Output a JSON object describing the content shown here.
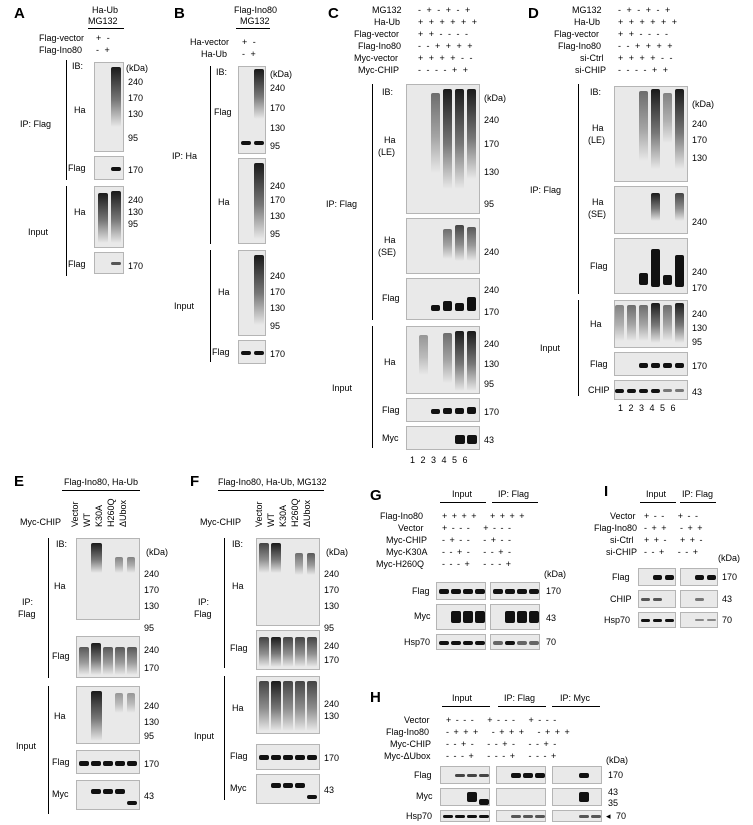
{
  "panels": {
    "A": {
      "letter": "A",
      "header": [
        "Ha-Ub",
        "MG132"
      ],
      "rows": [
        {
          "label": "Flag-vector",
          "signs": "+ -"
        },
        {
          "label": "Flag-Ino80",
          "signs": "- +"
        }
      ],
      "ib": "IB:",
      "kda": "(kDa)",
      "ip": "IP: Flag",
      "input": "Input",
      "blots": [
        {
          "label": "Ha",
          "markers": [
            "240",
            "170",
            "130",
            "95"
          ]
        },
        {
          "label": "Flag",
          "markers": [
            "170"
          ]
        },
        {
          "label": "Ha",
          "markers": [
            "240",
            "130",
            "95"
          ]
        },
        {
          "label": "Flag",
          "markers": [
            "170"
          ]
        }
      ]
    },
    "B": {
      "letter": "B",
      "header": [
        "Flag-Ino80",
        "MG132"
      ],
      "rows": [
        {
          "label": "Ha-vector",
          "signs": "+ -"
        },
        {
          "label": "Ha-Ub",
          "signs": "- +"
        }
      ],
      "ib": "IB:",
      "kda": "(kDa)",
      "ip": "IP: Ha",
      "input": "Input",
      "blots": [
        {
          "label": "Flag",
          "markers": [
            "240",
            "170",
            "130",
            "95"
          ]
        },
        {
          "label": "Ha",
          "markers": [
            "240",
            "170",
            "130",
            "95"
          ]
        },
        {
          "label": "Ha",
          "markers": [
            "240",
            "170",
            "130",
            "95"
          ]
        },
        {
          "label": "Flag",
          "markers": [
            "170"
          ]
        }
      ]
    },
    "C": {
      "letter": "C",
      "rows": [
        {
          "label": "MG132",
          "signs": "- + - + - +"
        },
        {
          "label": "Ha-Ub",
          "signs": "+ + + + + +"
        },
        {
          "label": "Flag-vector",
          "signs": "+ + - - - -"
        },
        {
          "label": "Flag-Ino80",
          "signs": "- - + + + +"
        },
        {
          "label": "Myc-vector",
          "signs": "+ + + + - -"
        },
        {
          "label": "Myc-CHIP",
          "signs": "- - - - + +"
        }
      ],
      "ib": "IB:",
      "kda": "(kDa)",
      "ip": "IP: Flag",
      "input": "Input",
      "blots": [
        {
          "label": "Ha",
          "sub": "(LE)",
          "markers": [
            "240",
            "170",
            "130",
            "95"
          ]
        },
        {
          "label": "Ha",
          "sub": "(SE)",
          "markers": [
            "240"
          ]
        },
        {
          "label": "Flag",
          "markers": [
            "240",
            "170"
          ]
        },
        {
          "label": "Ha",
          "markers": [
            "240",
            "130",
            "95"
          ]
        },
        {
          "label": "Flag",
          "markers": [
            "170"
          ]
        },
        {
          "label": "Myc",
          "markers": [
            "43"
          ]
        }
      ],
      "lanes": "1 2 3 4 5 6"
    },
    "D": {
      "letter": "D",
      "rows": [
        {
          "label": "MG132",
          "signs": "- + - + - +"
        },
        {
          "label": "Ha-Ub",
          "signs": "+ + + + + +"
        },
        {
          "label": "Flag-vector",
          "signs": "+ + - - - -"
        },
        {
          "label": "Flag-Ino80",
          "signs": "- - + + + +"
        },
        {
          "label": "si-Ctrl",
          "signs": "+ + + + - -"
        },
        {
          "label": "si-CHIP",
          "signs": "- - - - + +"
        }
      ],
      "ib": "IB:",
      "kda": "(kDa)",
      "ip": "IP: Flag",
      "input": "Input",
      "blots": [
        {
          "label": "Ha",
          "sub": "(LE)",
          "markers": [
            "240",
            "170",
            "130"
          ]
        },
        {
          "label": "Ha",
          "sub": "(SE)",
          "markers": [
            "240"
          ]
        },
        {
          "label": "Flag",
          "markers": [
            "240",
            "170"
          ]
        },
        {
          "label": "Ha",
          "markers": [
            "240",
            "130",
            "95"
          ]
        },
        {
          "label": "Flag",
          "markers": [
            "170"
          ]
        },
        {
          "label": "CHIP",
          "markers": [
            "43"
          ]
        }
      ],
      "lanes": "1 2 3 4 5 6"
    },
    "E": {
      "letter": "E",
      "header": "Flag-Ino80, Ha-Ub",
      "row_label": "Myc-CHIP",
      "columns": [
        "Vector",
        "WT",
        "K30A",
        "H260Q",
        "ΔUbox"
      ],
      "ib": "IB:",
      "kda": "(kDa)",
      "ip": [
        "IP:",
        "Flag"
      ],
      "input": "Input",
      "blots": [
        {
          "label": "Ha",
          "markers": [
            "240",
            "170",
            "130",
            "95"
          ]
        },
        {
          "label": "Flag",
          "markers": [
            "240",
            "170"
          ]
        },
        {
          "label": "Ha",
          "markers": [
            "240",
            "130",
            "95"
          ]
        },
        {
          "label": "Flag",
          "markers": [
            "170"
          ]
        },
        {
          "label": "Myc",
          "markers": [
            "43"
          ]
        }
      ]
    },
    "F": {
      "letter": "F",
      "header": "Flag-Ino80, Ha-Ub, MG132",
      "row_label": "Myc-CHIP",
      "columns": [
        "Vector",
        "WT",
        "K30A",
        "H260Q",
        "ΔUbox"
      ],
      "ib": "IB:",
      "kda": "(kDa)",
      "ip": [
        "IP:",
        "Flag"
      ],
      "input": "Input",
      "blots": [
        {
          "label": "Ha",
          "markers": [
            "240",
            "170",
            "130",
            "95"
          ]
        },
        {
          "label": "Flag",
          "markers": [
            "240",
            "170"
          ]
        },
        {
          "label": "Ha",
          "markers": [
            "240",
            "130"
          ]
        },
        {
          "label": "Flag",
          "markers": [
            "170"
          ]
        },
        {
          "label": "Myc",
          "markers": [
            "43"
          ]
        }
      ]
    },
    "G": {
      "letter": "G",
      "groups": [
        "Input",
        "IP: Flag"
      ],
      "rows": [
        {
          "label": "Flag-Ino80",
          "signs": "+ + + +   + + + +"
        },
        {
          "label": "Vector",
          "signs": "+ - - -   + - - -"
        },
        {
          "label": "Myc-CHIP",
          "signs": "- + - -   - + - -"
        },
        {
          "label": "Myc-K30A",
          "signs": "- - + -   - - + -"
        },
        {
          "label": "Myc-H260Q",
          "signs": "- - - +   - - - +"
        }
      ],
      "kda": "(kDa)",
      "blots": [
        {
          "label": "Flag",
          "marker": "170"
        },
        {
          "label": "Myc",
          "marker": "43"
        },
        {
          "label": "Hsp70",
          "marker": "70"
        }
      ]
    },
    "H": {
      "letter": "H",
      "groups": [
        "Input",
        "IP: Flag",
        "IP: Myc"
      ],
      "rows": [
        {
          "label": "Vector",
          "signs": "+ - - -   + - - -   + - - -"
        },
        {
          "label": "Flag-Ino80",
          "signs": "- + + +   - + + +   - + + +"
        },
        {
          "label": "Myc-CHIP",
          "signs": "- - + -   - - + -   - - + -"
        },
        {
          "label": "Myc-ΔUbox",
          "signs": "- - - +   - - - +   - - - +"
        }
      ],
      "kda": "(kDa)",
      "blots": [
        {
          "label": "Flag",
          "markers": [
            "170"
          ]
        },
        {
          "label": "Myc",
          "markers": [
            "43",
            "35"
          ]
        },
        {
          "label": "Hsp70",
          "markers": [
            "70"
          ]
        }
      ]
    },
    "I": {
      "letter": "I",
      "groups": [
        "Input",
        "IP: Flag"
      ],
      "rows": [
        {
          "label": "Vector",
          "signs": "+ - -   + - -"
        },
        {
          "label": "Flag-Ino80",
          "signs": "- + +   - + +"
        },
        {
          "label": "si-Ctrl",
          "signs": "+ + -   + + -"
        },
        {
          "label": "si-CHIP",
          "signs": "- - +   - - +"
        }
      ],
      "kda": "(kDa)",
      "blots": [
        {
          "label": "Flag",
          "marker": "170"
        },
        {
          "label": "CHIP",
          "marker": "43"
        },
        {
          "label": "Hsp70",
          "marker": "70"
        }
      ]
    }
  }
}
